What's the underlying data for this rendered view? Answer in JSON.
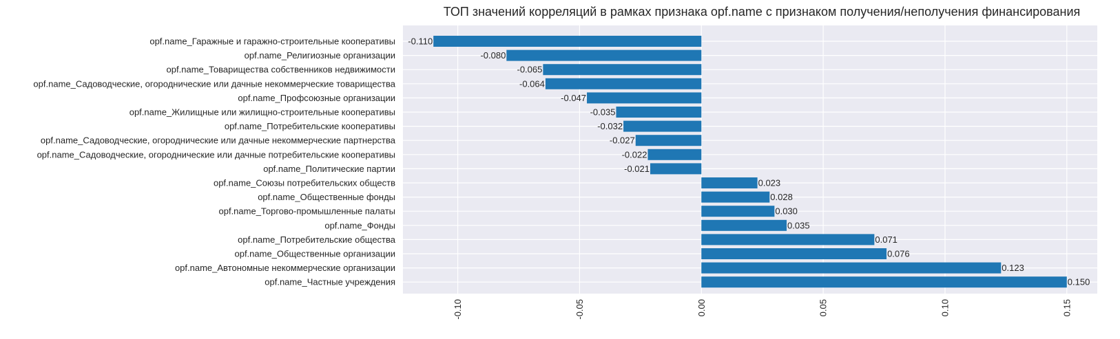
{
  "chart_data": {
    "type": "bar",
    "orientation": "horizontal",
    "title": "ТОП значений корреляций в рамках признака opf.name с признаком получения/неполучения финансирования",
    "xlabel": "",
    "ylabel": "",
    "xlim": [
      -0.1225,
      0.1625
    ],
    "xticks": [
      "-0.10",
      "-0.05",
      "0.00",
      "0.05",
      "0.10",
      "0.15"
    ],
    "grid": true,
    "colors": {
      "bar": "#1f77b4",
      "plot_bg": "#eaeaf2",
      "grid": "#ffffff",
      "text": "#262626"
    },
    "categories": [
      "opf.name_Гаражные и гаражно-строительные кооперативы",
      "opf.name_Религиозные организации",
      "opf.name_Товарищества собственников недвижимости",
      "opf.name_Садоводческие, огороднические или дачные некоммерческие товарищества",
      "opf.name_Профсоюзные организации",
      "opf.name_Жилищные или жилищно-строительные кооперативы",
      "opf.name_Потребительские кооперативы",
      "opf.name_Садоводческие, огороднические или дачные некоммерческие партнерства",
      "opf.name_Садоводческие, огороднические или дачные потребительские кооперативы",
      "opf.name_Политические партии",
      "opf.name_Союзы потребительских обществ",
      "opf.name_Общественные фонды",
      "opf.name_Торгово-промышленные палаты",
      "opf.name_Фонды",
      "opf.name_Потребительские общества",
      "opf.name_Общественные организации",
      "opf.name_Автономные некоммерческие организации",
      "opf.name_Частные учреждения"
    ],
    "values": [
      -0.11,
      -0.08,
      -0.065,
      -0.064,
      -0.047,
      -0.035,
      -0.032,
      -0.027,
      -0.022,
      -0.021,
      0.023,
      0.028,
      0.03,
      0.035,
      0.071,
      0.076,
      0.123,
      0.15
    ],
    "value_labels": [
      "-0.110",
      "-0.080",
      "-0.065",
      "-0.064",
      "-0.047",
      "-0.035",
      "-0.032",
      "-0.027",
      "-0.022",
      "-0.021",
      "0.023",
      "0.028",
      "0.030",
      "0.035",
      "0.071",
      "0.076",
      "0.123",
      "0.150"
    ]
  }
}
